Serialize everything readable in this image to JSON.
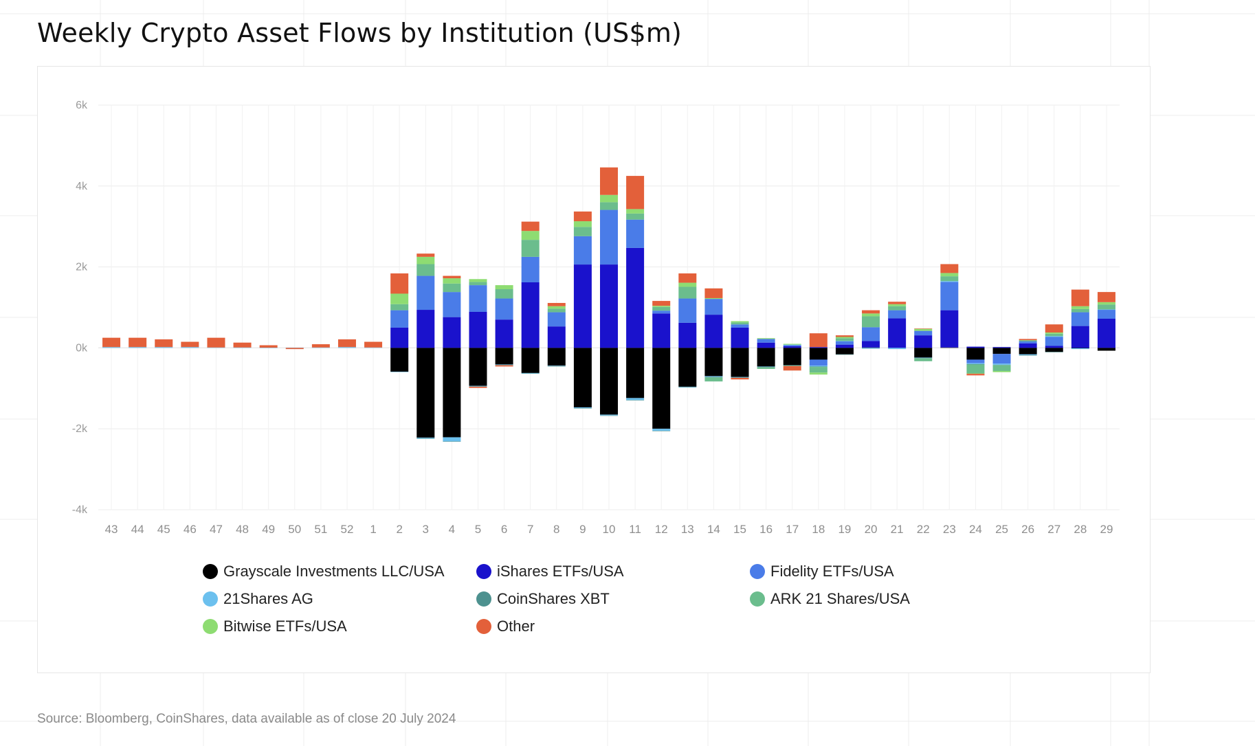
{
  "title": "Weekly Crypto Asset Flows by Institution (US$m)",
  "source": "Source: Bloomberg, CoinShares, data available as of close 20 July 2024",
  "chart_data": {
    "type": "bar",
    "stacked": true,
    "xlabel": "",
    "ylabel": "",
    "ylim": [
      -4000,
      6000
    ],
    "yticks": [
      6000,
      4000,
      2000,
      0,
      -2000,
      -4000
    ],
    "ytick_labels": [
      "6k",
      "4k",
      "2k",
      "0k",
      "-2k",
      "-4k"
    ],
    "grid": true,
    "legend_position": "bottom",
    "categories": [
      "43",
      "44",
      "45",
      "46",
      "47",
      "48",
      "49",
      "50",
      "51",
      "52",
      "1",
      "2",
      "3",
      "4",
      "5",
      "6",
      "7",
      "8",
      "9",
      "10",
      "11",
      "12",
      "13",
      "14",
      "15",
      "16",
      "17",
      "18",
      "19",
      "20",
      "21",
      "22",
      "23",
      "24",
      "25",
      "26",
      "27",
      "28",
      "29"
    ],
    "series": [
      {
        "name": "Grayscale Investments LLC/USA",
        "color": "#000000",
        "values": [
          0,
          0,
          0,
          0,
          0,
          0,
          0,
          0,
          0,
          0,
          0,
          -590,
          -2220,
          -2210,
          -940,
          -410,
          -620,
          -440,
          -1470,
          -1650,
          -1240,
          -2000,
          -960,
          -700,
          -720,
          -460,
          -430,
          -290,
          -160,
          10,
          0,
          -240,
          10,
          -290,
          -150,
          -160,
          -100,
          -10,
          -70
        ]
      },
      {
        "name": "iShares ETFs/USA",
        "color": "#1a12cc",
        "values": [
          0,
          0,
          0,
          0,
          0,
          0,
          0,
          0,
          0,
          0,
          0,
          500,
          940,
          760,
          890,
          700,
          1620,
          530,
          2060,
          2060,
          2470,
          850,
          620,
          820,
          500,
          130,
          40,
          20,
          80,
          160,
          730,
          310,
          920,
          30,
          20,
          110,
          50,
          540,
          720
        ]
      },
      {
        "name": "Fidelity ETFs/USA",
        "color": "#4a7ce8",
        "values": [
          0,
          0,
          0,
          0,
          0,
          0,
          0,
          0,
          0,
          0,
          0,
          430,
          840,
          620,
          660,
          520,
          630,
          350,
          700,
          1350,
          700,
          70,
          600,
          390,
          80,
          90,
          30,
          -150,
          80,
          340,
          200,
          110,
          700,
          -90,
          -240,
          50,
          220,
          340,
          220
        ]
      },
      {
        "name": "21Shares AG",
        "color": "#6cc0ee",
        "values": [
          20,
          20,
          20,
          20,
          10,
          10,
          5,
          5,
          10,
          20,
          10,
          -10,
          -20,
          -100,
          -10,
          -10,
          -10,
          -10,
          -20,
          -20,
          -50,
          -50,
          -10,
          -20,
          -10,
          -10,
          10,
          -20,
          10,
          -20,
          -30,
          -10,
          20,
          -20,
          -30,
          -20,
          20,
          -20,
          10
        ]
      },
      {
        "name": "CoinShares XBT",
        "color": "#4d918f",
        "values": [
          0,
          0,
          0,
          0,
          0,
          0,
          0,
          0,
          0,
          0,
          0,
          0,
          -10,
          -10,
          -10,
          -10,
          -10,
          -10,
          -10,
          -10,
          -10,
          -10,
          -10,
          -10,
          -10,
          -10,
          -10,
          -10,
          -10,
          0,
          0,
          -10,
          0,
          -10,
          -10,
          -10,
          -10,
          0,
          0
        ]
      },
      {
        "name": "ARK 21 Shares/USA",
        "color": "#6bbd8d",
        "values": [
          0,
          0,
          0,
          0,
          0,
          0,
          0,
          0,
          0,
          0,
          0,
          150,
          290,
          210,
          80,
          230,
          420,
          90,
          230,
          190,
          150,
          90,
          290,
          -100,
          50,
          -40,
          -10,
          -140,
          70,
          270,
          100,
          -70,
          120,
          -220,
          -140,
          30,
          60,
          80,
          120
        ]
      },
      {
        "name": "Bitwise ETFs/USA",
        "color": "#8edc72",
        "values": [
          0,
          0,
          0,
          0,
          0,
          0,
          0,
          0,
          0,
          0,
          0,
          260,
          180,
          130,
          70,
          100,
          220,
          60,
          140,
          180,
          110,
          30,
          100,
          20,
          30,
          20,
          20,
          -50,
          30,
          70,
          50,
          50,
          80,
          -10,
          -30,
          0,
          30,
          70,
          60
        ]
      },
      {
        "name": "Other",
        "color": "#e3603a",
        "values": [
          230,
          230,
          190,
          130,
          240,
          120,
          60,
          -30,
          80,
          190,
          140,
          500,
          80,
          60,
          -30,
          -30,
          230,
          80,
          240,
          680,
          820,
          120,
          230,
          240,
          -40,
          0,
          -110,
          340,
          40,
          80,
          60,
          10,
          220,
          -40,
          0,
          30,
          200,
          410,
          250
        ]
      }
    ]
  }
}
